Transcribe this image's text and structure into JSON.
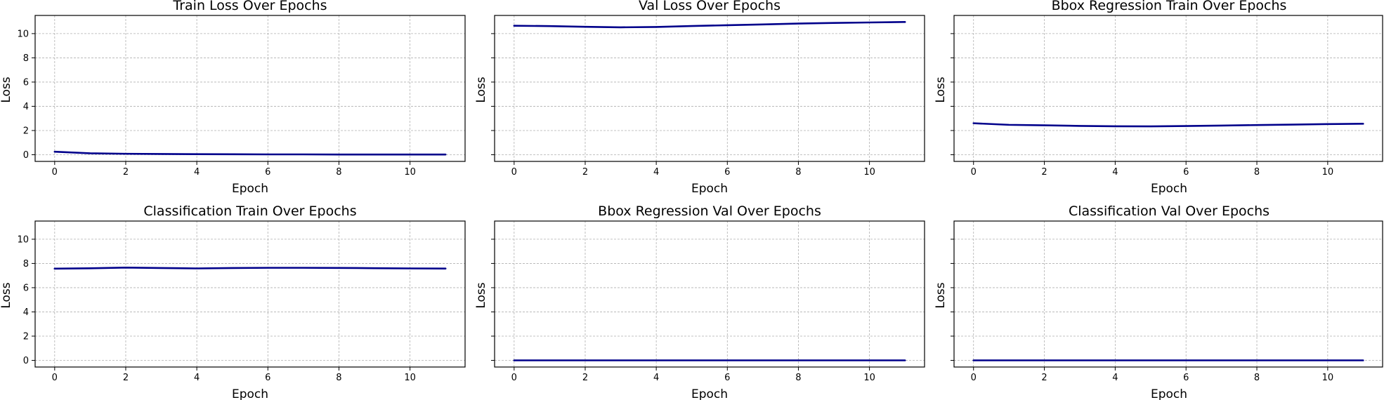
{
  "chart_data": [
    {
      "type": "line",
      "title": "Train Loss Over Epochs",
      "xlabel": "Epoch",
      "ylabel": "Loss",
      "show_ytick_labels": true,
      "x": [
        0,
        1,
        2,
        3,
        4,
        5,
        6,
        7,
        8,
        9,
        10,
        11
      ],
      "series": [
        {
          "values": [
            0.25,
            0.12,
            0.08,
            0.06,
            0.05,
            0.04,
            0.03,
            0.03,
            0.02,
            0.02,
            0.02,
            0.02
          ]
        }
      ],
      "xlim": [
        -0.55,
        11.55
      ],
      "ylim": [
        -0.55,
        11.5
      ],
      "xticks": [
        0,
        2,
        4,
        6,
        8,
        10
      ],
      "yticks": [
        0,
        2,
        4,
        6,
        8,
        10
      ],
      "grid": true,
      "line_color": "#00008b"
    },
    {
      "type": "line",
      "title": "Val Loss Over Epochs",
      "xlabel": "Epoch",
      "ylabel": "Loss",
      "show_ytick_labels": false,
      "x": [
        0,
        1,
        2,
        3,
        4,
        5,
        6,
        7,
        8,
        9,
        10,
        11
      ],
      "series": [
        {
          "values": [
            10.65,
            10.62,
            10.56,
            10.52,
            10.55,
            10.63,
            10.69,
            10.76,
            10.83,
            10.88,
            10.92,
            10.96
          ]
        }
      ],
      "xlim": [
        -0.55,
        11.55
      ],
      "ylim": [
        -0.55,
        11.5
      ],
      "xticks": [
        0,
        2,
        4,
        6,
        8,
        10
      ],
      "yticks": [
        0,
        2,
        4,
        6,
        8,
        10
      ],
      "grid": true,
      "line_color": "#00008b"
    },
    {
      "type": "line",
      "title": "Bbox Regression Train Over Epochs",
      "xlabel": "Epoch",
      "ylabel": "Loss",
      "show_ytick_labels": false,
      "x": [
        0,
        1,
        2,
        3,
        4,
        5,
        6,
        7,
        8,
        9,
        10,
        11
      ],
      "series": [
        {
          "values": [
            2.6,
            2.47,
            2.43,
            2.38,
            2.35,
            2.34,
            2.37,
            2.41,
            2.45,
            2.49,
            2.53,
            2.56
          ]
        }
      ],
      "xlim": [
        -0.55,
        11.55
      ],
      "ylim": [
        -0.55,
        11.5
      ],
      "xticks": [
        0,
        2,
        4,
        6,
        8,
        10
      ],
      "yticks": [
        0,
        2,
        4,
        6,
        8,
        10
      ],
      "grid": true,
      "line_color": "#00008b"
    },
    {
      "type": "line",
      "title": "Classification Train Over Epochs",
      "xlabel": "Epoch",
      "ylabel": "Loss",
      "show_ytick_labels": true,
      "x": [
        0,
        1,
        2,
        3,
        4,
        5,
        6,
        7,
        8,
        9,
        10,
        11
      ],
      "series": [
        {
          "values": [
            7.57,
            7.6,
            7.66,
            7.62,
            7.59,
            7.62,
            7.64,
            7.64,
            7.63,
            7.61,
            7.59,
            7.58
          ]
        }
      ],
      "xlim": [
        -0.55,
        11.55
      ],
      "ylim": [
        -0.55,
        11.5
      ],
      "xticks": [
        0,
        2,
        4,
        6,
        8,
        10
      ],
      "yticks": [
        0,
        2,
        4,
        6,
        8,
        10
      ],
      "grid": true,
      "line_color": "#00008b"
    },
    {
      "type": "line",
      "title": "Bbox Regression Val Over Epochs",
      "xlabel": "Epoch",
      "ylabel": "Loss",
      "show_ytick_labels": false,
      "x": [
        0,
        1,
        2,
        3,
        4,
        5,
        6,
        7,
        8,
        9,
        10,
        11
      ],
      "series": [
        {
          "values": [
            0,
            0,
            0,
            0,
            0,
            0,
            0,
            0,
            0,
            0,
            0,
            0
          ]
        }
      ],
      "xlim": [
        -0.55,
        11.55
      ],
      "ylim": [
        -0.55,
        11.5
      ],
      "xticks": [
        0,
        2,
        4,
        6,
        8,
        10
      ],
      "yticks": [
        0,
        2,
        4,
        6,
        8,
        10
      ],
      "grid": true,
      "line_color": "#00008b"
    },
    {
      "type": "line",
      "title": "Classification Val Over Epochs",
      "xlabel": "Epoch",
      "ylabel": "Loss",
      "show_ytick_labels": false,
      "x": [
        0,
        1,
        2,
        3,
        4,
        5,
        6,
        7,
        8,
        9,
        10,
        11
      ],
      "series": [
        {
          "values": [
            0,
            0,
            0,
            0,
            0,
            0,
            0,
            0,
            0,
            0,
            0,
            0
          ]
        }
      ],
      "xlim": [
        -0.55,
        11.55
      ],
      "ylim": [
        -0.55,
        11.5
      ],
      "xticks": [
        0,
        2,
        4,
        6,
        8,
        10
      ],
      "yticks": [
        0,
        2,
        4,
        6,
        8,
        10
      ],
      "grid": true,
      "line_color": "#00008b"
    }
  ]
}
